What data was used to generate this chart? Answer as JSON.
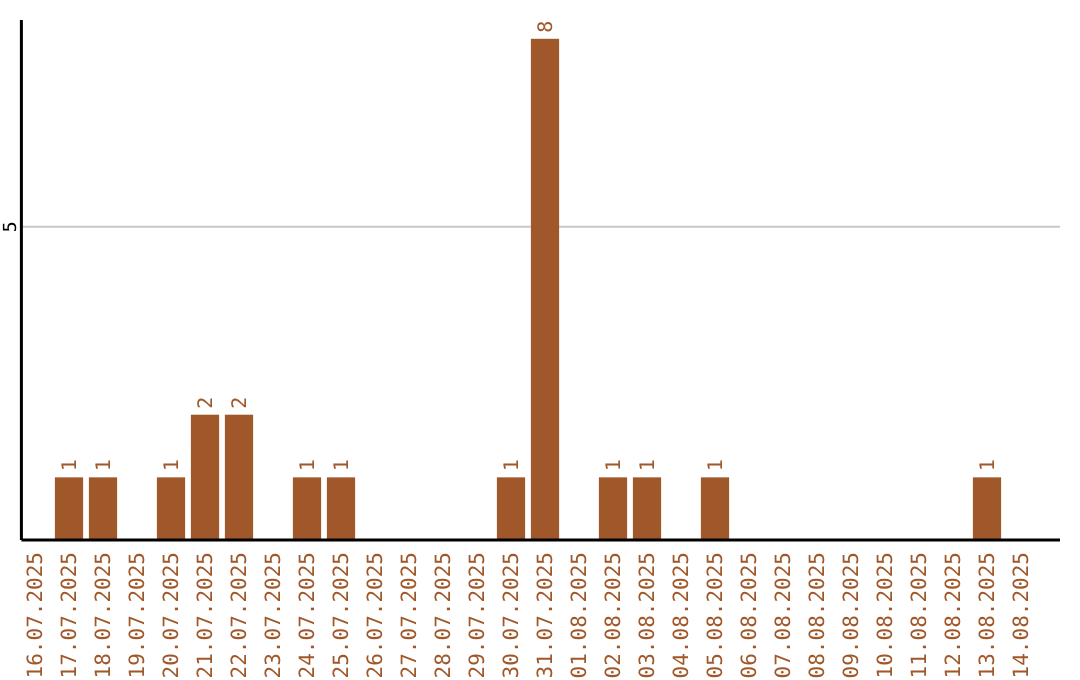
{
  "chart_data": {
    "type": "bar",
    "categories": [
      "16.07.2025",
      "17.07.2025",
      "18.07.2025",
      "19.07.2025",
      "20.07.2025",
      "21.07.2025",
      "22.07.2025",
      "23.07.2025",
      "24.07.2025",
      "25.07.2025",
      "26.07.2025",
      "27.07.2025",
      "28.07.2025",
      "29.07.2025",
      "30.07.2025",
      "31.07.2025",
      "01.08.2025",
      "02.08.2025",
      "03.08.2025",
      "04.08.2025",
      "05.08.2025",
      "06.08.2025",
      "07.08.2025",
      "08.08.2025",
      "09.08.2025",
      "10.08.2025",
      "11.08.2025",
      "12.08.2025",
      "13.08.2025",
      "14.08.2025"
    ],
    "values": [
      0,
      1,
      1,
      0,
      1,
      2,
      2,
      0,
      1,
      1,
      0,
      0,
      0,
      0,
      1,
      8,
      0,
      1,
      1,
      0,
      1,
      0,
      0,
      0,
      0,
      0,
      0,
      0,
      1,
      0
    ],
    "value_labels": [
      null,
      "1",
      "1",
      null,
      "1",
      "2",
      "2",
      null,
      "1",
      "1",
      null,
      null,
      null,
      null,
      "1",
      "8",
      null,
      "1",
      "1",
      null,
      "1",
      null,
      null,
      null,
      null,
      null,
      null,
      null,
      "1",
      null
    ],
    "color": "#a0582a",
    "ylim": [
      0,
      8.3
    ],
    "yticks": [
      5
    ],
    "grid": "y"
  }
}
